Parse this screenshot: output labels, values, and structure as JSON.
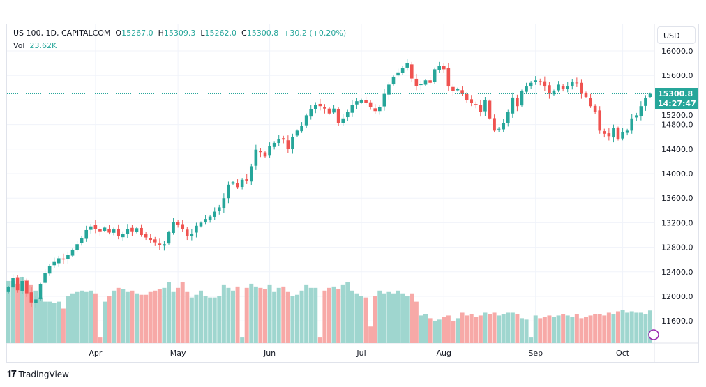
{
  "header": {
    "symbol": "US 100, 1D, CAPITALCOM",
    "o_label": "O",
    "open": "15267.0",
    "h_label": "H",
    "high": "15309.3",
    "l_label": "L",
    "low": "15262.0",
    "c_label": "C",
    "close": "15300.8",
    "change": "+30.2 (+0.20%)",
    "vol_label": "Vol",
    "vol": "23.62K"
  },
  "currency": "USD",
  "last_price": "15300.8",
  "countdown": "14:27:47",
  "logo": "TradingView",
  "colors": {
    "up": "#26a69a",
    "down": "#ef5350",
    "up_vol": "#9fd6cf",
    "down_vol": "#f7a9a7",
    "grid": "#f0f3fa"
  },
  "chart_data": {
    "type": "candlestick",
    "title": "US 100, 1D, CAPITALCOM",
    "ylim": [
      11300,
      16420
    ],
    "y_ticks": [
      "16000.0",
      "15600.0",
      "15200.0",
      "14800.0",
      "14400.0",
      "14000.0",
      "13600.0",
      "13200.0",
      "12800.0",
      "12400.0",
      "12000.0",
      "11600.0"
    ],
    "y_tick_values": [
      16000,
      15600,
      15200,
      14800,
      14400,
      14000,
      13600,
      13200,
      12800,
      12400,
      12000,
      11600
    ],
    "x_ticks": [
      {
        "label": "Apr",
        "index": 19
      },
      {
        "label": "May",
        "index": 37
      },
      {
        "label": "Jun",
        "index": 57
      },
      {
        "label": "Jul",
        "index": 77
      },
      {
        "label": "Aug",
        "index": 95
      },
      {
        "label": "Sep",
        "index": 115
      },
      {
        "label": "Oct",
        "index": 134
      }
    ],
    "close": [
      12150,
      12300,
      12100,
      12250,
      12050,
      11900,
      11950,
      12200,
      12380,
      12500,
      12560,
      12620,
      12600,
      12680,
      12760,
      12850,
      12950,
      13080,
      13140,
      13100,
      13060,
      13120,
      13040,
      13090,
      12980,
      13020,
      13100,
      13060,
      13110,
      13000,
      12960,
      12920,
      12880,
      12830,
      12850,
      13050,
      13215,
      13160,
      13100,
      12980,
      13020,
      13150,
      13200,
      13260,
      13300,
      13380,
      13450,
      13600,
      13820,
      13860,
      13780,
      13900,
      13880,
      14120,
      14390,
      14350,
      14280,
      14450,
      14500,
      14560,
      14555,
      14400,
      14600,
      14700,
      14780,
      14950,
      15050,
      15125,
      15100,
      15060,
      14980,
      15060,
      14820,
      14900,
      15000,
      15120,
      15180,
      15200,
      15150,
      15080,
      15020,
      15080,
      15300,
      15450,
      15580,
      15650,
      15720,
      15800,
      15550,
      15430,
      15465,
      15520,
      15480,
      15700,
      15750,
      15700,
      15420,
      15350,
      15380,
      15300,
      15200,
      15150,
      15125,
      15000,
      15200,
      14900,
      14700,
      14730,
      14820,
      15000,
      15240,
      15100,
      15350,
      15420,
      15480,
      15520,
      15500,
      15420,
      15300,
      15350,
      15450,
      15380,
      15420,
      15500,
      15480,
      15300,
      15250,
      15100,
      15010,
      14700,
      14650,
      14610,
      14750,
      14560,
      14680,
      14700,
      14900,
      14950,
      15100,
      15230,
      15300.8
    ],
    "volume_k": [
      45,
      45,
      43,
      48,
      46,
      42,
      38,
      33,
      30,
      30,
      29,
      30,
      25,
      34,
      36,
      37,
      38,
      37,
      38,
      36,
      4,
      30,
      34,
      38,
      40,
      39,
      37,
      38,
      36,
      35,
      35,
      37,
      38,
      39,
      40,
      44,
      37,
      40,
      44,
      37,
      33,
      35,
      38,
      34,
      33,
      33,
      34,
      42,
      40,
      38,
      41,
      4,
      40,
      43,
      41,
      40,
      39,
      42,
      37,
      40,
      41,
      37,
      34,
      35,
      38,
      42,
      40,
      40,
      4,
      38,
      40,
      41,
      39,
      42,
      44,
      38,
      36,
      34,
      33,
      12,
      34,
      38,
      36,
      37,
      36,
      38,
      36,
      34,
      36,
      30,
      20,
      21,
      18,
      16,
      17,
      19,
      20,
      16,
      18,
      22,
      20,
      21,
      19,
      20,
      22,
      21,
      22,
      20,
      21,
      22,
      22,
      21,
      18,
      17,
      4,
      20,
      18,
      19,
      20,
      19,
      20,
      21,
      20,
      19,
      21,
      18,
      19,
      20,
      21,
      21,
      20,
      22,
      21,
      23,
      24,
      22,
      23,
      22,
      22,
      21,
      23.62
    ],
    "last_price_line": 15300.8,
    "grid": true
  }
}
